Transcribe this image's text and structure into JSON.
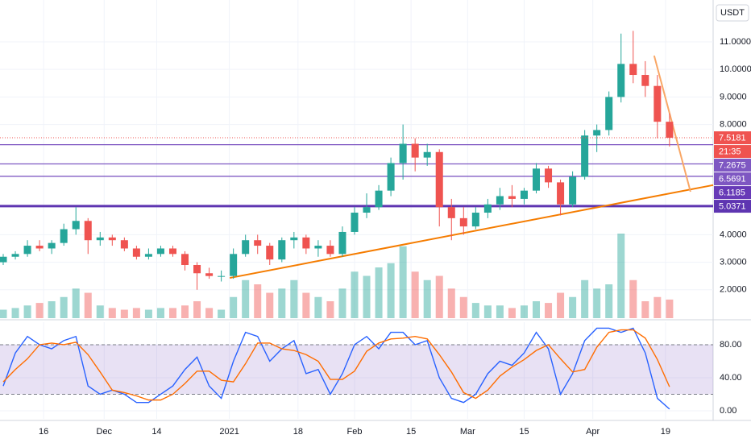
{
  "chart_data": [
    {
      "type": "candlestick",
      "currency": "USDT",
      "countdown": "21:35",
      "up_color": "#26a69a",
      "down_color": "#ef5350",
      "xlim": [
        4.2,
        180.8
      ],
      "ylim": [
        0.97,
        12.52
      ],
      "xticks": [
        {
          "value": 15,
          "label": "16"
        },
        {
          "value": 30,
          "label": "Dec"
        },
        {
          "value": 43,
          "label": "14"
        },
        {
          "value": 61,
          "label": "2021"
        },
        {
          "value": 78,
          "label": "18"
        },
        {
          "value": 92,
          "label": "Feb"
        },
        {
          "value": 106,
          "label": "15"
        },
        {
          "value": 120,
          "label": "Mar"
        },
        {
          "value": 134,
          "label": "15"
        },
        {
          "value": 151,
          "label": "Apr"
        },
        {
          "value": 169,
          "label": "19"
        }
      ],
      "yticks": [
        {
          "value": 2,
          "label": "2.0000"
        },
        {
          "value": 3,
          "label": "3.0000"
        },
        {
          "value": 4,
          "label": "4.0000"
        },
        {
          "value": 8,
          "label": "8.0000"
        },
        {
          "value": 9,
          "label": "9.0000"
        },
        {
          "value": 10,
          "label": "10.0000"
        },
        {
          "value": 11,
          "label": "11.0000"
        }
      ],
      "x": [
        5,
        8,
        11,
        14,
        17,
        20,
        23,
        26,
        29,
        32,
        35,
        38,
        41,
        44,
        47,
        50,
        53,
        56,
        59,
        62,
        65,
        68,
        71,
        74,
        77,
        80,
        83,
        86,
        89,
        92,
        95,
        98,
        101,
        104,
        107,
        110,
        113,
        116,
        119,
        122,
        125,
        128,
        131,
        134,
        137,
        140,
        143,
        146,
        149,
        152,
        155,
        158,
        161,
        164,
        167,
        170
      ],
      "open": [
        3.0,
        3.2,
        3.3,
        3.6,
        3.5,
        3.7,
        4.2,
        4.5,
        3.8,
        3.9,
        3.8,
        3.5,
        3.2,
        3.3,
        3.5,
        3.3,
        2.9,
        2.6,
        2.5,
        2.5,
        3.3,
        3.8,
        3.6,
        3.1,
        3.8,
        3.9,
        3.5,
        3.6,
        3.3,
        4.1,
        4.8,
        5.0,
        5.6,
        6.6,
        7.3,
        6.8,
        7.0,
        5.0,
        4.6,
        4.3,
        4.8,
        5.1,
        5.4,
        5.3,
        5.6,
        6.4,
        5.9,
        5.1,
        6.1,
        7.6,
        7.8,
        9.0,
        10.2,
        9.8,
        9.4,
        8.1
      ],
      "high": [
        3.3,
        3.4,
        3.8,
        3.8,
        3.8,
        4.4,
        5.0,
        4.6,
        4.1,
        4.0,
        3.9,
        3.6,
        3.5,
        3.6,
        3.6,
        3.4,
        3.0,
        2.8,
        2.7,
        3.5,
        4.0,
        4.0,
        3.7,
        3.9,
        4.1,
        4.0,
        3.8,
        3.8,
        4.3,
        5.0,
        5.5,
        5.8,
        6.8,
        8.0,
        7.5,
        7.3,
        7.1,
        5.3,
        5.0,
        5.0,
        5.3,
        5.7,
        5.8,
        5.7,
        6.6,
        6.5,
        6.0,
        6.3,
        7.8,
        8.0,
        9.2,
        11.3,
        11.4,
        10.3,
        9.8,
        8.4
      ],
      "low": [
        2.9,
        3.1,
        3.2,
        3.4,
        3.3,
        3.6,
        4.0,
        3.3,
        3.6,
        3.6,
        3.4,
        3.1,
        3.1,
        3.2,
        3.2,
        2.7,
        2.0,
        2.4,
        2.3,
        2.4,
        3.2,
        3.3,
        2.9,
        3.0,
        3.5,
        3.3,
        3.2,
        3.2,
        3.2,
        4.0,
        4.6,
        4.9,
        5.4,
        6.0,
        6.3,
        6.5,
        4.3,
        3.8,
        4.0,
        4.2,
        4.6,
        4.9,
        5.0,
        5.1,
        5.5,
        5.7,
        4.7,
        5.0,
        6.0,
        7.0,
        7.6,
        8.8,
        9.5,
        9.0,
        7.5,
        7.2
      ],
      "close": [
        3.2,
        3.3,
        3.6,
        3.5,
        3.7,
        4.2,
        4.5,
        3.8,
        3.9,
        3.8,
        3.5,
        3.2,
        3.3,
        3.5,
        3.3,
        2.9,
        2.6,
        2.5,
        2.5,
        3.3,
        3.8,
        3.6,
        3.1,
        3.8,
        3.9,
        3.5,
        3.6,
        3.3,
        4.1,
        4.8,
        5.0,
        5.6,
        6.6,
        7.3,
        6.8,
        7.0,
        5.0,
        4.6,
        4.3,
        4.8,
        5.1,
        5.4,
        5.3,
        5.6,
        6.4,
        5.9,
        5.1,
        6.1,
        7.6,
        7.8,
        9.0,
        10.2,
        9.8,
        9.4,
        8.1,
        7.5181
      ],
      "volume": [
        10,
        12,
        15,
        18,
        20,
        25,
        35,
        30,
        15,
        12,
        10,
        12,
        10,
        12,
        12,
        15,
        20,
        12,
        10,
        25,
        45,
        40,
        30,
        35,
        45,
        30,
        25,
        20,
        35,
        55,
        50,
        60,
        65,
        85,
        55,
        45,
        50,
        35,
        25,
        18,
        15,
        15,
        12,
        15,
        20,
        18,
        30,
        25,
        45,
        35,
        40,
        100,
        45,
        20,
        25,
        22
      ],
      "levels": [
        {
          "value": 7.2675,
          "color": "#7e57c2"
        },
        {
          "value": 6.5691,
          "color": "#7e57c2"
        },
        {
          "value": 6.1185,
          "color": "#673ab7"
        },
        {
          "value": 5.0371,
          "color": "#5e35b1"
        }
      ],
      "trendlines": [
        {
          "color": "#f57c00",
          "x": [
            61.1,
            180.8
          ],
          "y": [
            2.43,
            5.8
          ]
        },
        {
          "color": "#f9a766",
          "x": [
            166.2,
            175.2
          ],
          "y": [
            10.5,
            5.56
          ]
        }
      ]
    },
    {
      "type": "line",
      "band": [
        20,
        80
      ],
      "xlim": [
        4.2,
        180.8
      ],
      "ylim": [
        -9.8,
        107.3
      ],
      "yticks": [
        {
          "value": 0,
          "label": "0.00"
        },
        {
          "value": 40,
          "label": "40.00"
        },
        {
          "value": 80,
          "label": "80.00"
        }
      ],
      "x": [
        5,
        8,
        11,
        14,
        17,
        20,
        23,
        26,
        29,
        32,
        35,
        38,
        41,
        44,
        47,
        50,
        53,
        56,
        59,
        62,
        65,
        68,
        71,
        74,
        77,
        80,
        83,
        86,
        89,
        92,
        95,
        98,
        101,
        104,
        107,
        110,
        113,
        116,
        119,
        122,
        125,
        128,
        131,
        134,
        137,
        140,
        143,
        146,
        149,
        152,
        155,
        158,
        161,
        164,
        167,
        170
      ],
      "series": [
        {
          "color": "#2962ff",
          "values": [
            30,
            70,
            90,
            80,
            75,
            85,
            90,
            30,
            20,
            25,
            20,
            10,
            10,
            20,
            30,
            50,
            65,
            30,
            15,
            60,
            95,
            90,
            60,
            75,
            85,
            45,
            50,
            20,
            45,
            80,
            90,
            75,
            95,
            95,
            80,
            85,
            40,
            15,
            10,
            20,
            45,
            60,
            55,
            70,
            95,
            75,
            20,
            45,
            85,
            100,
            100,
            95,
            100,
            70,
            15,
            2
          ]
        },
        {
          "color": "#ff6d00",
          "values": [
            35,
            50,
            63,
            80,
            82,
            80,
            83,
            68,
            47,
            25,
            22,
            18,
            13,
            13,
            20,
            33,
            48,
            48,
            37,
            35,
            57,
            82,
            82,
            75,
            73,
            68,
            60,
            38,
            38,
            48,
            72,
            82,
            87,
            88,
            90,
            87,
            68,
            47,
            22,
            15,
            25,
            42,
            53,
            62,
            73,
            80,
            63,
            47,
            50,
            77,
            95,
            98,
            98,
            88,
            62,
            29
          ]
        }
      ]
    }
  ]
}
